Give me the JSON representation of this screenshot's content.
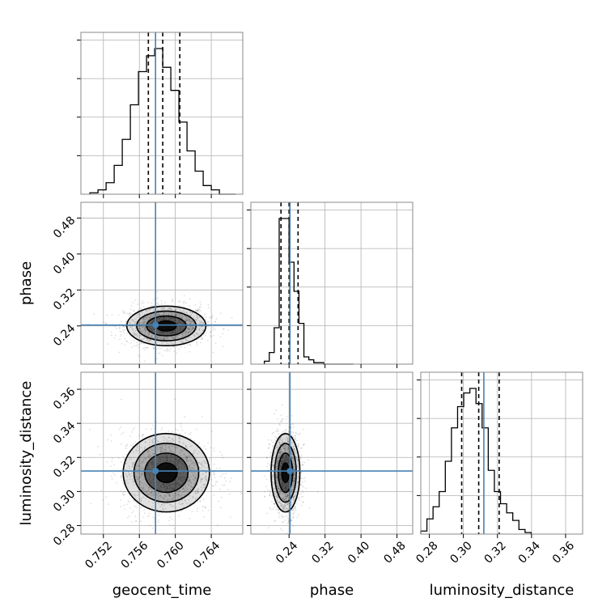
{
  "chart_data": {
    "type": "corner",
    "parameters": [
      "geocent_time",
      "phase",
      "luminosity_distance"
    ],
    "axis_labels": {
      "geocent_time": "geocent_time",
      "phase": "phase",
      "luminosity_distance": "luminosity_distance"
    },
    "ranges": {
      "geocent_time": [
        0.7495,
        0.7675
      ],
      "phase": [
        0.155,
        0.515
      ],
      "luminosity_distance": [
        0.275,
        0.37
      ]
    },
    "ticks": {
      "geocent_time": [
        0.752,
        0.756,
        0.76,
        0.764
      ],
      "phase": [
        0.24,
        0.32,
        0.4,
        0.48
      ],
      "luminosity_distance": [
        0.28,
        0.3,
        0.32,
        0.34,
        0.36
      ]
    },
    "tick_labels": {
      "geocent_time": [
        "0.752",
        "0.756",
        "0.760",
        "0.764"
      ],
      "phase": [
        "0.24",
        "0.32",
        "0.40",
        "0.48"
      ],
      "luminosity_distance": [
        "0.28",
        "0.30",
        "0.32",
        "0.34",
        "0.36"
      ]
    },
    "truths": {
      "geocent_time": 0.7578,
      "phase": 0.242,
      "luminosity_distance": 0.312
    },
    "quantiles": {
      "geocent_time": [
        0.757,
        0.7586,
        0.7605
      ],
      "phase": [
        0.222,
        0.24,
        0.26
      ],
      "luminosity_distance": [
        0.299,
        0.309,
        0.321
      ]
    },
    "histograms": {
      "geocent_time": {
        "edges": [
          0.7505,
          0.7514,
          0.7523,
          0.7532,
          0.7541,
          0.755,
          0.7559,
          0.7568,
          0.7577,
          0.7586,
          0.7595,
          0.7604,
          0.7613,
          0.7622,
          0.7631,
          0.764,
          0.7649,
          0.7658,
          0.7667
        ],
        "counts": [
          1,
          3,
          8,
          20,
          38,
          62,
          85,
          96,
          101,
          88,
          72,
          50,
          30,
          16,
          6,
          3,
          0,
          0
        ]
      },
      "phase": {
        "edges": [
          0.185,
          0.196,
          0.207,
          0.218,
          0.229,
          0.24,
          0.251,
          0.262,
          0.273,
          0.284,
          0.295,
          0.306,
          0.317,
          0.328,
          0.339,
          0.35,
          0.361,
          0.372,
          0.383
        ],
        "counts": [
          2,
          8,
          25,
          100,
          100,
          70,
          50,
          28,
          5,
          3,
          1,
          1,
          0,
          0,
          0,
          0,
          0,
          0
        ]
      },
      "luminosity_distance": {
        "edges": [
          0.275,
          0.2786,
          0.2822,
          0.2858,
          0.2894,
          0.293,
          0.2966,
          0.3002,
          0.3038,
          0.3074,
          0.311,
          0.3146,
          0.3182,
          0.3218,
          0.3254,
          0.329,
          0.3326,
          0.3362,
          0.3398
        ],
        "counts": [
          2,
          10,
          18,
          28,
          48,
          70,
          84,
          93,
          96,
          86,
          70,
          42,
          28,
          20,
          14,
          9,
          3,
          1
        ]
      }
    },
    "posteriors_2d": {
      "geocent_time|phase": {
        "center": [
          0.759,
          0.24
        ],
        "sigma": [
          0.0022,
          0.022
        ],
        "scatter_extent": [
          0.007,
          0.07
        ],
        "contour_levels_sigma": [
          0.5,
          1.0,
          1.5,
          2.0
        ]
      },
      "geocent_time|luminosity_distance": {
        "center": [
          0.759,
          0.311
        ],
        "sigma": [
          0.0024,
          0.0115
        ],
        "scatter_extent": [
          0.0075,
          0.036
        ],
        "contour_levels_sigma": [
          0.5,
          1.0,
          1.5,
          2.0
        ]
      },
      "phase|luminosity_distance": {
        "center": [
          0.232,
          0.311
        ],
        "sigma": [
          0.016,
          0.0115
        ],
        "scatter_extent": [
          0.055,
          0.036
        ],
        "contour_levels_sigma": [
          0.5,
          1.0,
          1.5,
          2.0
        ]
      }
    },
    "grid": true,
    "colors": {
      "truth": "#4682b4",
      "hist": "#000000",
      "contour": "#000000",
      "grid": "#b0b0b0",
      "scatter": "#000000"
    }
  }
}
